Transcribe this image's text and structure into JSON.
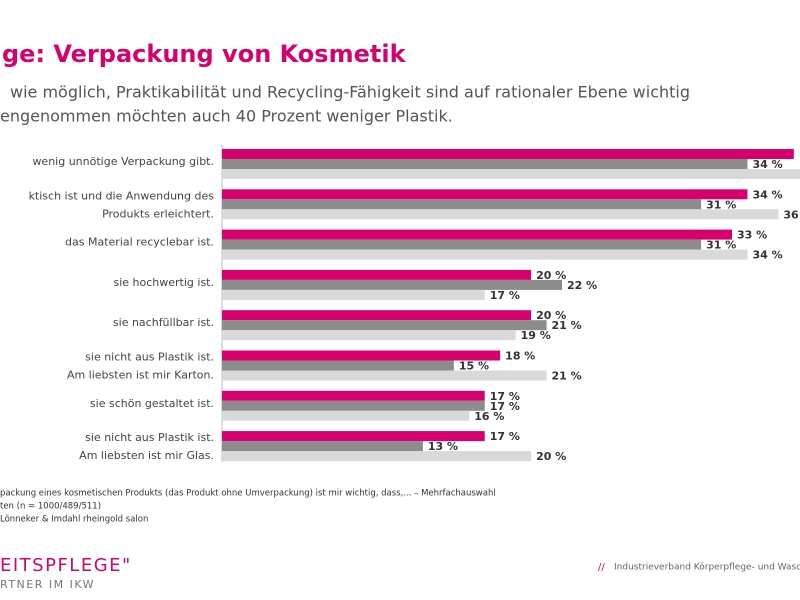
{
  "chart_data": {
    "type": "hbar",
    "title": "ge: Verpackung von Kosmetik",
    "subtitle": [
      "wie möglich, Praktikabilität und Recycling-Fähigkeit sind auf rationaler Ebene wichtig",
      "engenommen möchten auch 40 Prozent weniger Plastik."
    ],
    "categories": [
      [
        "wenig unnötige Verpackung gibt."
      ],
      [
        "ktisch ist und die Anwendung des",
        "Produkts erleichtert."
      ],
      [
        "das Material recyclebar ist."
      ],
      [
        "sie hochwertig ist."
      ],
      [
        "sie nachfüllbar ist."
      ],
      [
        "sie nicht aus Plastik ist.",
        "Am liebsten ist mir Karton."
      ],
      [
        "sie schön gestaltet ist."
      ],
      [
        "sie nicht aus Plastik ist.",
        "Am liebsten ist mir Glas."
      ]
    ],
    "series": [
      {
        "color": "#d6006e",
        "values": [
          37,
          34,
          33,
          20,
          20,
          18,
          17,
          17
        ],
        "value_labels": [
          null,
          "34 %",
          "33 %",
          "20 %",
          "20 %",
          "18 %",
          "17 %",
          "17 %"
        ]
      },
      {
        "color": "#8c8c8c",
        "values": [
          34,
          31,
          31,
          22,
          21,
          15,
          17,
          13
        ],
        "value_labels": [
          "34 %",
          "31 %",
          "31 %",
          "22 %",
          "21 %",
          "15 %",
          "17 %",
          "13 %"
        ]
      },
      {
        "color": "#d9d9d9",
        "values": [
          38,
          36,
          34,
          17,
          19,
          21,
          16,
          20
        ],
        "value_labels": [
          null,
          "36",
          "34 %",
          "17 %",
          "19 %",
          "21 %",
          "16 %",
          "20 %"
        ]
      }
    ],
    "xlim": [
      0,
      37.4
    ],
    "footnotes": [
      "packung eines kosmetischen Produkts (das Produkt ohne Umverpackung) ist mir wichtig, dass,... – Mehrfachauswahl",
      "ten (n = 1000/489/511)",
      "Lönneker & Imdahl rheingold salon"
    ]
  },
  "footer": {
    "logo": "EITSPFLEGE\"",
    "logo_sub": "RTNER IM IKW",
    "slashes": "//",
    "organization": "Industrieverband Körperpflege- und Wasc"
  }
}
